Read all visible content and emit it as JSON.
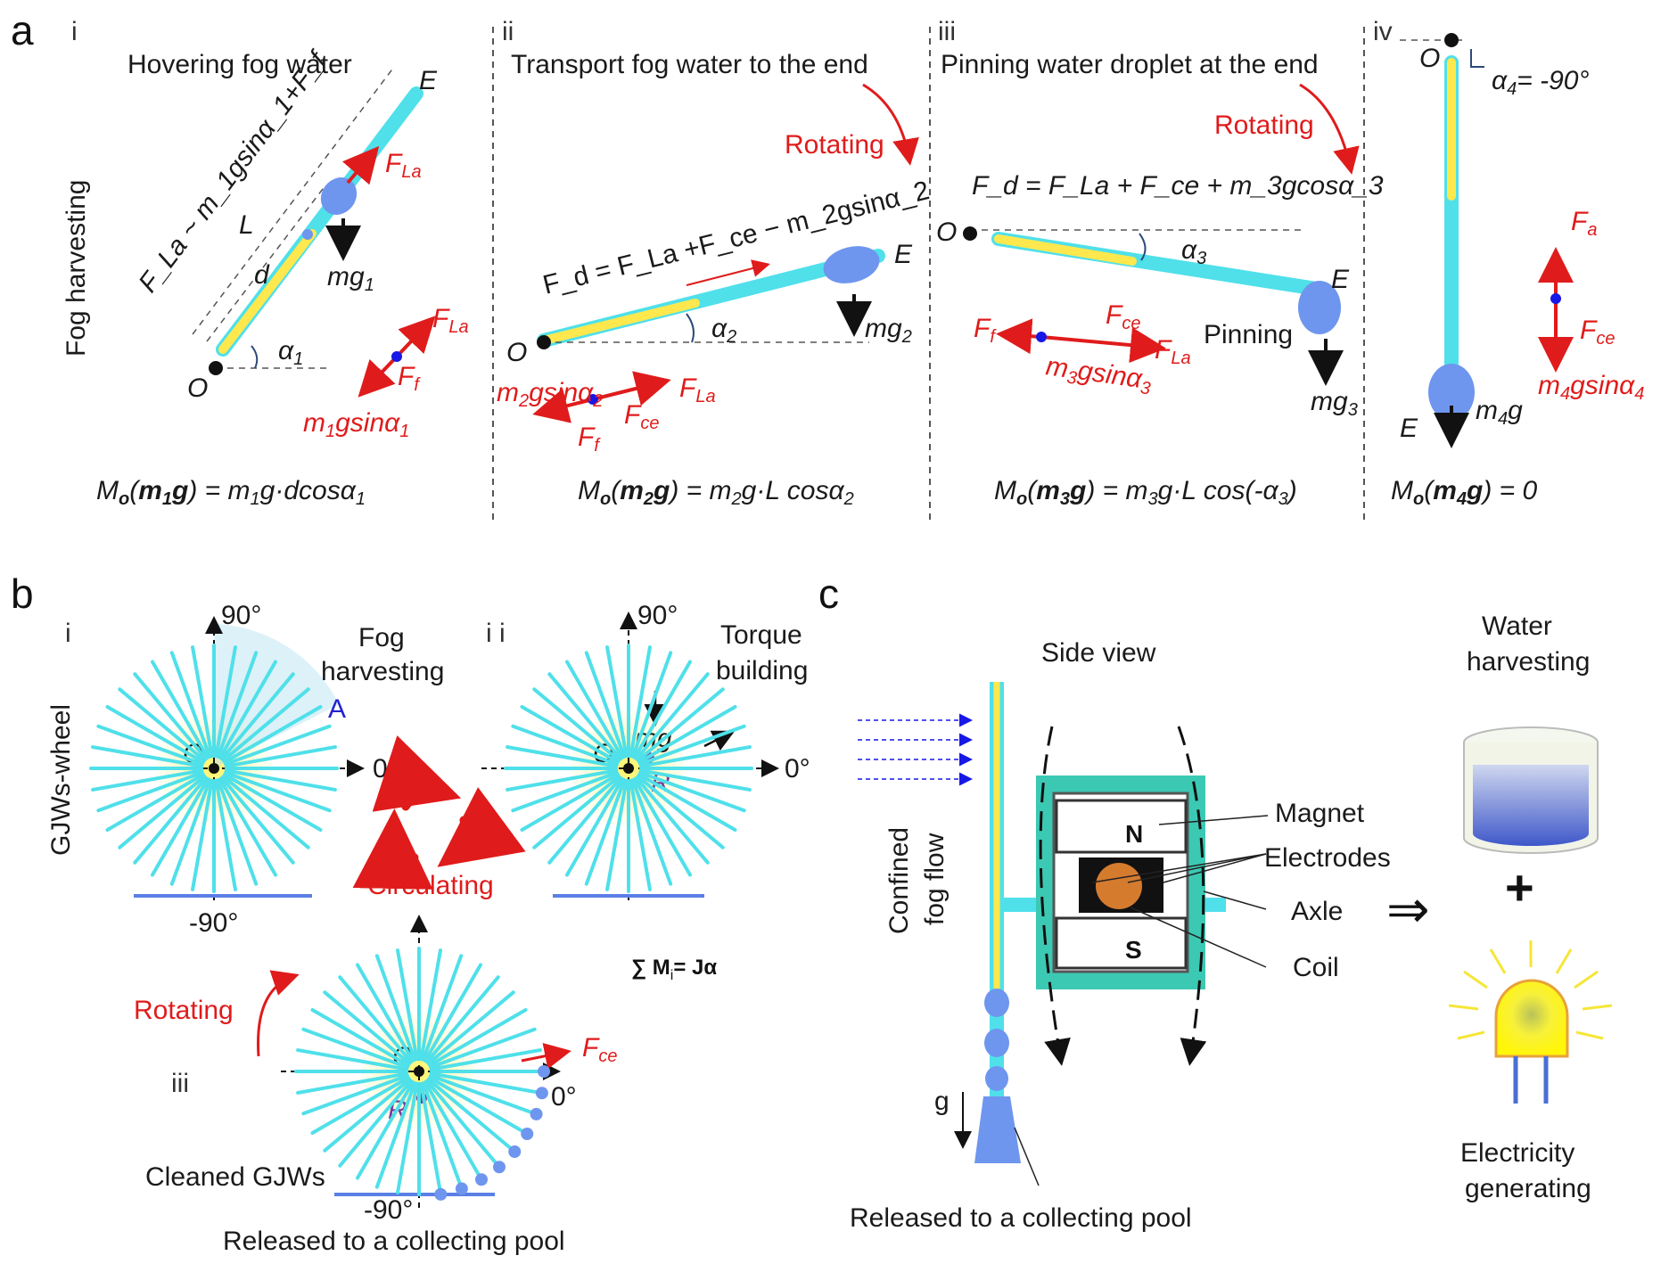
{
  "panel_a": {
    "letter": "a",
    "side_label": "Fog harvesting",
    "sub_i": {
      "roman": "i",
      "title": "Hovering fog water",
      "force_expr": "F_La ~ m_1gsinα_1+F_f",
      "L": "L",
      "d": "d",
      "E": "E",
      "O": "O",
      "alpha": "α",
      "alpha_sub": "1",
      "mg": "mg",
      "mg_sub": "1",
      "FLa": "F",
      "FLa_sub": "La",
      "Ff": "F",
      "Ff_sub": "f",
      "mgsin": "m",
      "mgsin_rest": "gsinα",
      "sub1": "1",
      "moment": "M",
      "moment_rhs": "g·dcosα",
      "sub": "1"
    },
    "sub_ii": {
      "roman": "ii",
      "title": "Transport fog water to the end",
      "rotating": "Rotating",
      "fd_expr": "F_d = F_La +F_ce − m_2gsinα_2",
      "E": "E",
      "O": "O",
      "alpha_sub": "2",
      "mg_sub": "2",
      "Fce_sub": "ce",
      "moment_rhs": "g·L cosα"
    },
    "sub_iii": {
      "roman": "iii",
      "title": "Pinning water droplet at the end",
      "rotating": "Rotating",
      "fd_expr": "F_d = F_La + F_ce + m_3gcosα_3",
      "pinning": "Pinning",
      "E": "E",
      "O": "O",
      "alpha_sub": "3",
      "mg_sub": "3",
      "moment_rhs": "g·L cos(-α",
      "moment_close": ")"
    },
    "sub_iv": {
      "roman": "iv",
      "alpha_text": "α",
      "alpha_sub": "4",
      "alpha_val": "= -90°",
      "Fa_sub": "a",
      "mg_sub": "4",
      "moment_rhs": ") = 0",
      "E": "E",
      "O": "O"
    }
  },
  "panel_b": {
    "letter": "b",
    "side_label": "GJWs-wheel",
    "deg90": "90°",
    "deg0": "0°",
    "degm90": "-90°",
    "O": "O",
    "R": "R",
    "mg": "mg",
    "A": "A",
    "i": {
      "roman": "i",
      "label1": "Fog",
      "label2": "harvesting"
    },
    "ii": {
      "roman": "i i",
      "label1": "Torque",
      "label2": "building",
      "equation": "∑ M",
      "eq_sub": "i",
      "eq_rhs": "= Jα"
    },
    "iii": {
      "roman": "iii",
      "rotating": "Rotating",
      "cleaned": "Cleaned GJWs",
      "released": "Released to a collecting pool",
      "fce": "F",
      "fce_sub": "ce"
    },
    "circulating": "Circulating"
  },
  "panel_c": {
    "letter": "c",
    "side_view": "Side view",
    "confined": "Confined",
    "fog_flow": "fog flow",
    "magnet": "Magnet",
    "electrodes": "Electrodes",
    "axle": "Axle",
    "coil": "Coil",
    "N": "N",
    "S": "S",
    "g": "g",
    "released": "Released to a collecting pool",
    "water1": "Water",
    "water2": "harvesting",
    "implies": "⇒",
    "plus": "+",
    "elec1": "Electricity",
    "elec2": "generating"
  },
  "colors": {
    "fiber": "#4fe0ea",
    "core": "#ffe84d",
    "drop": "#6f96ee",
    "force": "#e01b1b",
    "magnet": "#3cc9b4"
  }
}
